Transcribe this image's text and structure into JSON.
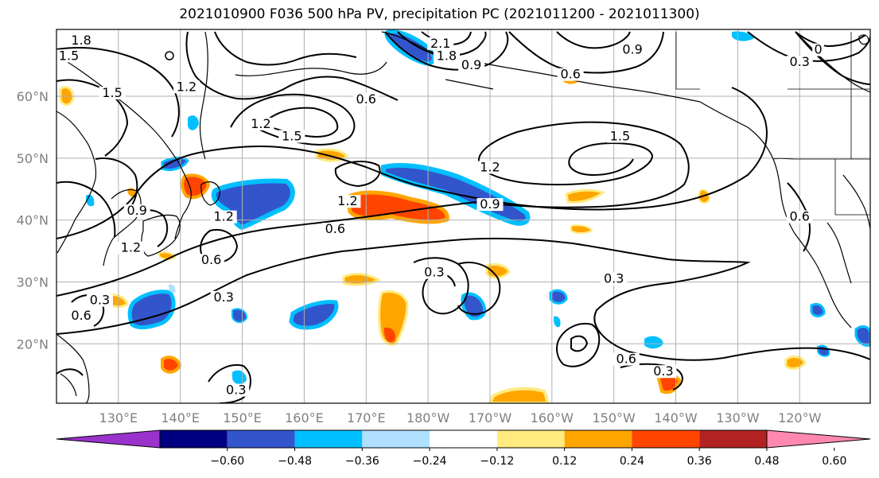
{
  "title": "2021010900 F036 500 hPa PV, precipitation PC (2021011200 - 2021011300)",
  "lat_ticks": [
    {
      "label": "60°N",
      "lat": 60
    },
    {
      "label": "50°N",
      "lat": 50
    },
    {
      "label": "40°N",
      "lat": 40
    },
    {
      "label": "30°N",
      "lat": 30
    },
    {
      "label": "20°N",
      "lat": 20
    }
  ],
  "lon_ticks": [
    {
      "label": "130°E",
      "lon": 130
    },
    {
      "label": "140°E",
      "lon": 140
    },
    {
      "label": "150°E",
      "lon": 150
    },
    {
      "label": "160°E",
      "lon": 160
    },
    {
      "label": "170°E",
      "lon": 170
    },
    {
      "label": "180°W",
      "lon": 180
    },
    {
      "label": "170°W",
      "lon": 190
    },
    {
      "label": "160°W",
      "lon": 200
    },
    {
      "label": "150°W",
      "lon": 210
    },
    {
      "label": "140°W",
      "lon": 220
    },
    {
      "label": "130°W",
      "lon": 230
    },
    {
      "label": "120°W",
      "lon": 240
    }
  ],
  "colorbar": {
    "colors": [
      "#9933cc",
      "#000080",
      "#3355cc",
      "#00bfff",
      "#b0e0ff",
      "#ffffff",
      "#ffeb80",
      "#ffa500",
      "#ff4500",
      "#b22222",
      "#ff88b0"
    ],
    "labels": [
      "−0.60",
      "−0.48",
      "−0.36",
      "−0.24",
      "−0.12",
      "0.12",
      "0.24",
      "0.36",
      "0.48",
      "0.60"
    ]
  },
  "contour_labels": [
    {
      "text": "1.8",
      "lon": 124,
      "lat": 68.5
    },
    {
      "text": "1.5",
      "lon": 122,
      "lat": 66
    },
    {
      "text": "1.5",
      "lon": 129,
      "lat": 60
    },
    {
      "text": "1.2",
      "lon": 141,
      "lat": 61
    },
    {
      "text": "2.1",
      "lon": 182,
      "lat": 68
    },
    {
      "text": "1.8",
      "lon": 183,
      "lat": 66
    },
    {
      "text": "0.9",
      "lon": 187,
      "lat": 64.5
    },
    {
      "text": "0.9",
      "lon": 213,
      "lat": 67
    },
    {
      "text": "0.6",
      "lon": 203,
      "lat": 63
    },
    {
      "text": "0.6",
      "lon": 170,
      "lat": 59
    },
    {
      "text": "1.2",
      "lon": 153,
      "lat": 55
    },
    {
      "text": "1.5",
      "lon": 158,
      "lat": 53
    },
    {
      "text": "1.5",
      "lon": 211,
      "lat": 53
    },
    {
      "text": "1.2",
      "lon": 190,
      "lat": 48
    },
    {
      "text": "1.2",
      "lon": 167,
      "lat": 42.5
    },
    {
      "text": "0.9",
      "lon": 190,
      "lat": 42
    },
    {
      "text": "0.9",
      "lon": 133,
      "lat": 41
    },
    {
      "text": "1.2",
      "lon": 147,
      "lat": 40
    },
    {
      "text": "1.2",
      "lon": 132,
      "lat": 35
    },
    {
      "text": "0.6",
      "lon": 165,
      "lat": 38
    },
    {
      "text": "0.6",
      "lon": 145,
      "lat": 33
    },
    {
      "text": "0.3",
      "lon": 147,
      "lat": 27
    },
    {
      "text": "0.3",
      "lon": 127,
      "lat": 26.5
    },
    {
      "text": "0.6",
      "lon": 124,
      "lat": 24
    },
    {
      "text": "0.3",
      "lon": 181,
      "lat": 31
    },
    {
      "text": "0.3",
      "lon": 210,
      "lat": 30
    },
    {
      "text": "0.6",
      "lon": 212,
      "lat": 17
    },
    {
      "text": "0.3",
      "lon": 218,
      "lat": 15
    },
    {
      "text": "0.3",
      "lon": 149,
      "lat": 12
    },
    {
      "text": "0.6",
      "lon": 240,
      "lat": 40
    },
    {
      "text": "0.3",
      "lon": 240,
      "lat": 65
    },
    {
      "text": "0",
      "lon": 243,
      "lat": 67
    }
  ]
}
